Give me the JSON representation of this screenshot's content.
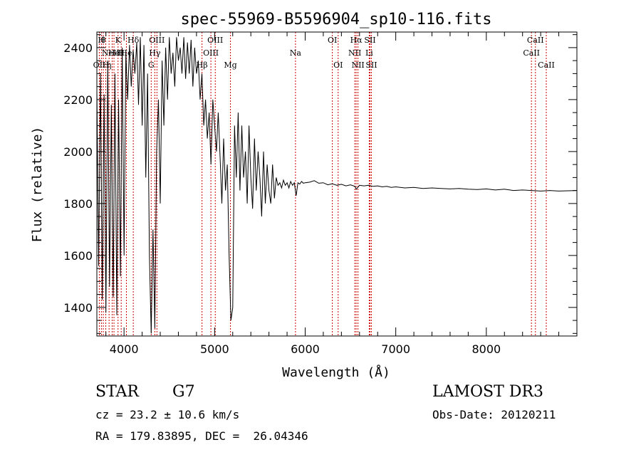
{
  "chart_data": {
    "type": "line",
    "title": "spec-55969-B5596904_sp10-116.fits",
    "xlabel": "Wavelength (Å)",
    "ylabel": "Flux (relative)",
    "xlim": [
      3700,
      9000
    ],
    "ylim": [
      1290,
      2460
    ],
    "xticks": [
      4000,
      5000,
      6000,
      7000,
      8000
    ],
    "yticks": [
      1400,
      1600,
      1800,
      2000,
      2200,
      2400
    ],
    "line_color": "#000000",
    "marker_color": "#cc0000",
    "series": [
      {
        "x": [
          3700,
          3720,
          3740,
          3760,
          3780,
          3800,
          3820,
          3840,
          3860,
          3880,
          3900,
          3920,
          3940,
          3960,
          3980,
          4000,
          4020,
          4040,
          4060,
          4080,
          4100,
          4120,
          4140,
          4160,
          4180,
          4200,
          4220,
          4240,
          4260,
          4280,
          4300,
          4320,
          4340,
          4360,
          4380,
          4400,
          4420,
          4440,
          4460,
          4480,
          4500,
          4520,
          4540,
          4560,
          4580,
          4600,
          4620,
          4640,
          4660,
          4680,
          4700,
          4720,
          4740,
          4760,
          4780,
          4800,
          4820,
          4840,
          4860,
          4880,
          4900,
          4920,
          4940,
          4960,
          4980,
          5000,
          5020,
          5040,
          5060,
          5080,
          5100,
          5120,
          5140,
          5160,
          5180,
          5200,
          5220,
          5240,
          5260,
          5280,
          5300,
          5320,
          5340,
          5360,
          5380,
          5400,
          5420,
          5440,
          5460,
          5480,
          5500,
          5520,
          5540,
          5560,
          5580,
          5600,
          5620,
          5640,
          5660,
          5680,
          5700,
          5720,
          5740,
          5760,
          5780,
          5800,
          5820,
          5840,
          5860,
          5880,
          5900,
          5920,
          5940,
          5960,
          5980,
          6000,
          6050,
          6100,
          6150,
          6200,
          6250,
          6300,
          6350,
          6400,
          6450,
          6500,
          6550,
          6563,
          6600,
          6650,
          6700,
          6750,
          6800,
          6850,
          6900,
          6950,
          7000,
          7100,
          7200,
          7300,
          7400,
          7500,
          7600,
          7700,
          7800,
          7900,
          8000,
          8100,
          8200,
          8300,
          8400,
          8500,
          8600,
          8700,
          8800,
          8900,
          9000
        ],
        "y": [
          2240,
          1560,
          2300,
          1430,
          2220,
          1380,
          2350,
          1480,
          2180,
          1440,
          2300,
          1370,
          2200,
          1520,
          2400,
          1600,
          2380,
          2200,
          2410,
          2250,
          2390,
          2300,
          2420,
          2180,
          2440,
          2100,
          2410,
          1900,
          2300,
          1600,
          1300,
          1700,
          1320,
          2000,
          2200,
          1800,
          2350,
          2100,
          2400,
          2200,
          2440,
          2300,
          2380,
          2250,
          2440,
          2350,
          2400,
          2300,
          2440,
          2280,
          2420,
          2300,
          2430,
          2250,
          2400,
          2300,
          2350,
          2200,
          2300,
          2100,
          2200,
          2050,
          2150,
          1950,
          2200,
          2100,
          2000,
          2150,
          1980,
          1800,
          2050,
          1850,
          1950,
          1600,
          1350,
          1400,
          2100,
          1900,
          2150,
          1850,
          2100,
          1900,
          2000,
          1800,
          2100,
          1900,
          1780,
          2050,
          1850,
          2000,
          1900,
          1750,
          2000,
          1800,
          1950,
          1850,
          1800,
          1950,
          1820,
          1900,
          1870,
          1880,
          1860,
          1890,
          1870,
          1880,
          1860,
          1885,
          1870,
          1880,
          1830,
          1880,
          1875,
          1885,
          1878,
          1880,
          1882,
          1888,
          1878,
          1880,
          1872,
          1876,
          1870,
          1874,
          1868,
          1872,
          1866,
          1855,
          1870,
          1868,
          1870,
          1866,
          1868,
          1864,
          1866,
          1862,
          1864,
          1860,
          1862,
          1858,
          1860,
          1858,
          1856,
          1858,
          1855,
          1854,
          1856,
          1852,
          1855,
          1850,
          1852,
          1850,
          1848,
          1850,
          1848,
          1849,
          1850
        ]
      }
    ],
    "line_markers": [
      {
        "x": 3727,
        "label": "OII",
        "row": 2
      },
      {
        "x": 3750,
        "label": "H",
        "row": 0
      },
      {
        "x": 3771,
        "label": "θ",
        "row": 0
      },
      {
        "x": 3798,
        "label": "H",
        "row": 2
      },
      {
        "x": 3835,
        "label": "η",
        "row": 2
      },
      {
        "x": 3869,
        "label": "NeIII",
        "row": 1
      },
      {
        "x": 3889,
        "label": "He",
        "row": 1
      },
      {
        "x": 3934,
        "label": "K",
        "row": 0
      },
      {
        "x": 3969,
        "label": "H",
        "row": 1
      },
      {
        "x": 4026,
        "label": "He",
        "row": 1
      },
      {
        "x": 4102,
        "label": "Hδ",
        "row": 0
      },
      {
        "x": 4300,
        "label": "G",
        "row": 2
      },
      {
        "x": 4340,
        "label": "Hγ",
        "row": 1
      },
      {
        "x": 4363,
        "label": "OIII",
        "row": 0
      },
      {
        "x": 4861,
        "label": "Hβ",
        "row": 2
      },
      {
        "x": 4959,
        "label": "OIII",
        "row": 1
      },
      {
        "x": 5007,
        "label": "OIII",
        "row": 0
      },
      {
        "x": 5175,
        "label": "Mg",
        "row": 2
      },
      {
        "x": 5893,
        "label": "Na",
        "row": 1
      },
      {
        "x": 6300,
        "label": "OI",
        "row": 0
      },
      {
        "x": 6364,
        "label": "OI",
        "row": 2
      },
      {
        "x": 6548,
        "label": "NII",
        "row": 1
      },
      {
        "x": 6563,
        "label": "Hα",
        "row": 0
      },
      {
        "x": 6583,
        "label": "NII",
        "row": 2
      },
      {
        "x": 6707,
        "label": "Li",
        "row": 1
      },
      {
        "x": 6716,
        "label": "SII",
        "row": 0
      },
      {
        "x": 6731,
        "label": "SII",
        "row": 2
      },
      {
        "x": 8498,
        "label": "CaII",
        "row": 1
      },
      {
        "x": 8542,
        "label": "CaII",
        "row": 0
      },
      {
        "x": 8662,
        "label": "CaII",
        "row": 2
      }
    ]
  },
  "info": {
    "class": "STAR",
    "subclass": "G7",
    "survey": "LAMOST DR3",
    "cz": "cz = 23.2 ± 10.6 km/s",
    "obs_date": "Obs-Date: 20120211",
    "radec": "RA = 179.83895, DEC =  26.04346"
  }
}
